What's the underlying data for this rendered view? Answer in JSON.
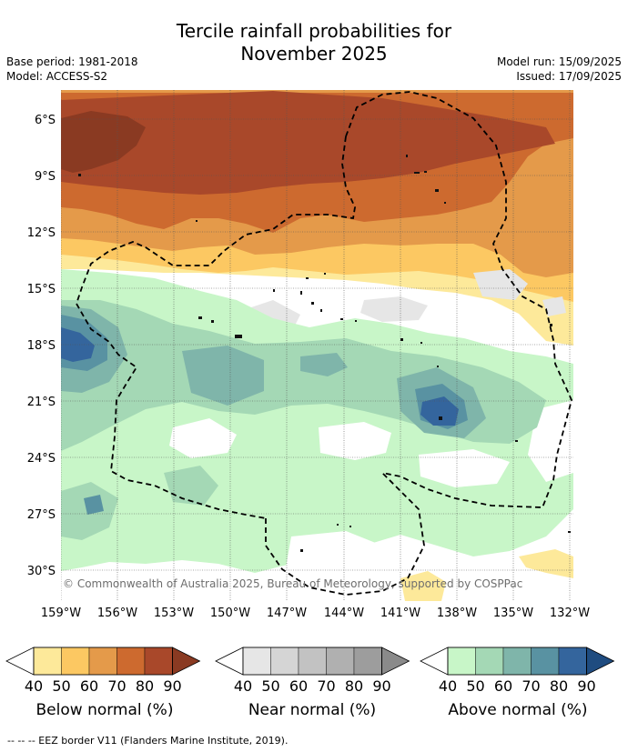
{
  "title": {
    "line1": "Tercile rainfall probabilities for",
    "line2": "November 2025"
  },
  "meta": {
    "base_period": "Base period: 1981-2018",
    "model": "Model: ACCESS-S2",
    "model_run": "Model run: 15/09/2025",
    "issued": "Issued: 17/09/2025"
  },
  "map": {
    "lat_labels": [
      "6°S",
      "9°S",
      "12°S",
      "15°S",
      "18°S",
      "21°S",
      "24°S",
      "27°S",
      "30°S"
    ],
    "lon_labels": [
      "159°W",
      "156°W",
      "153°W",
      "150°W",
      "147°W",
      "144°W",
      "141°W",
      "138°W",
      "135°W",
      "132°W"
    ],
    "copyright": "© Commonwealth of Australia 2025, Bureau of Meteorology, supported by COSPPac",
    "gridlines": true,
    "border_style": "dashed"
  },
  "colors": {
    "below": [
      "#fde99a",
      "#fcc862",
      "#e49a4a",
      "#cd6a2f",
      "#a9482a",
      "#8a3a22"
    ],
    "near": [
      "#e6e6e6",
      "#d5d5d5",
      "#c2c2c2",
      "#b0b0b0",
      "#9d9d9d",
      "#8a8a8a"
    ],
    "above": [
      "#c8f6c8",
      "#a4d8b5",
      "#7fb5aa",
      "#5992a2",
      "#34659d",
      "#1f4c80"
    ]
  },
  "legends": [
    {
      "title": "Below normal (%)",
      "ticks": [
        "40",
        "50",
        "60",
        "70",
        "80",
        "90"
      ]
    },
    {
      "title": "Near normal (%)",
      "ticks": [
        "40",
        "50",
        "60",
        "70",
        "80",
        "90"
      ]
    },
    {
      "title": "Above normal (%)",
      "ticks": [
        "40",
        "50",
        "60",
        "70",
        "80",
        "90"
      ]
    }
  ],
  "footer": "--  --  -- EEZ border V11 (Flanders Marine Institute, 2019)."
}
